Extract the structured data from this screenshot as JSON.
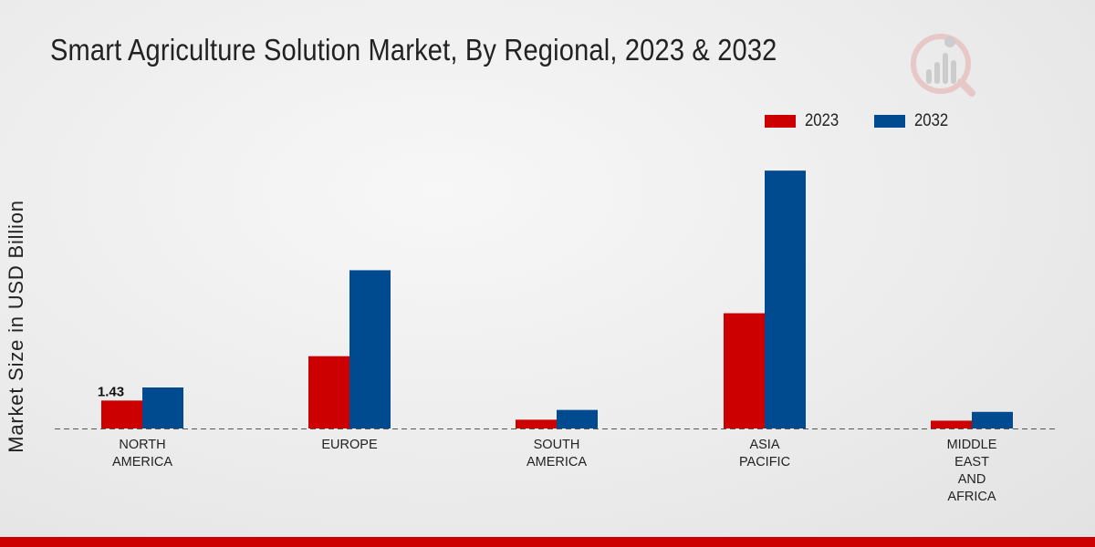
{
  "chart_data": {
    "type": "bar",
    "title": "Smart Agriculture Solution Market, By Regional, 2023 & 2032",
    "ylabel": "Market Size in USD Billion",
    "xlabel": "",
    "categories": [
      "NORTH\nAMERICA",
      "EUROPE",
      "SOUTH\nAMERICA",
      "ASIA\nPACIFIC",
      "MIDDLE\nEAST\nAND\nAFRICA"
    ],
    "series": [
      {
        "name": "2023",
        "color": "#cc0000",
        "values": [
          1.43,
          3.7,
          0.45,
          5.9,
          0.4
        ]
      },
      {
        "name": "2032",
        "color": "#004a8f",
        "values": [
          2.1,
          8.1,
          0.95,
          13.2,
          0.85
        ]
      }
    ],
    "data_labels": [
      {
        "series": 0,
        "index": 0,
        "text": "1.43"
      }
    ],
    "ylim": [
      0,
      14
    ],
    "legend": "top-right",
    "grid": false,
    "baseline": "dashed"
  },
  "logo_icon": "market-research-logo-icon",
  "footer_color": "#cc0000"
}
